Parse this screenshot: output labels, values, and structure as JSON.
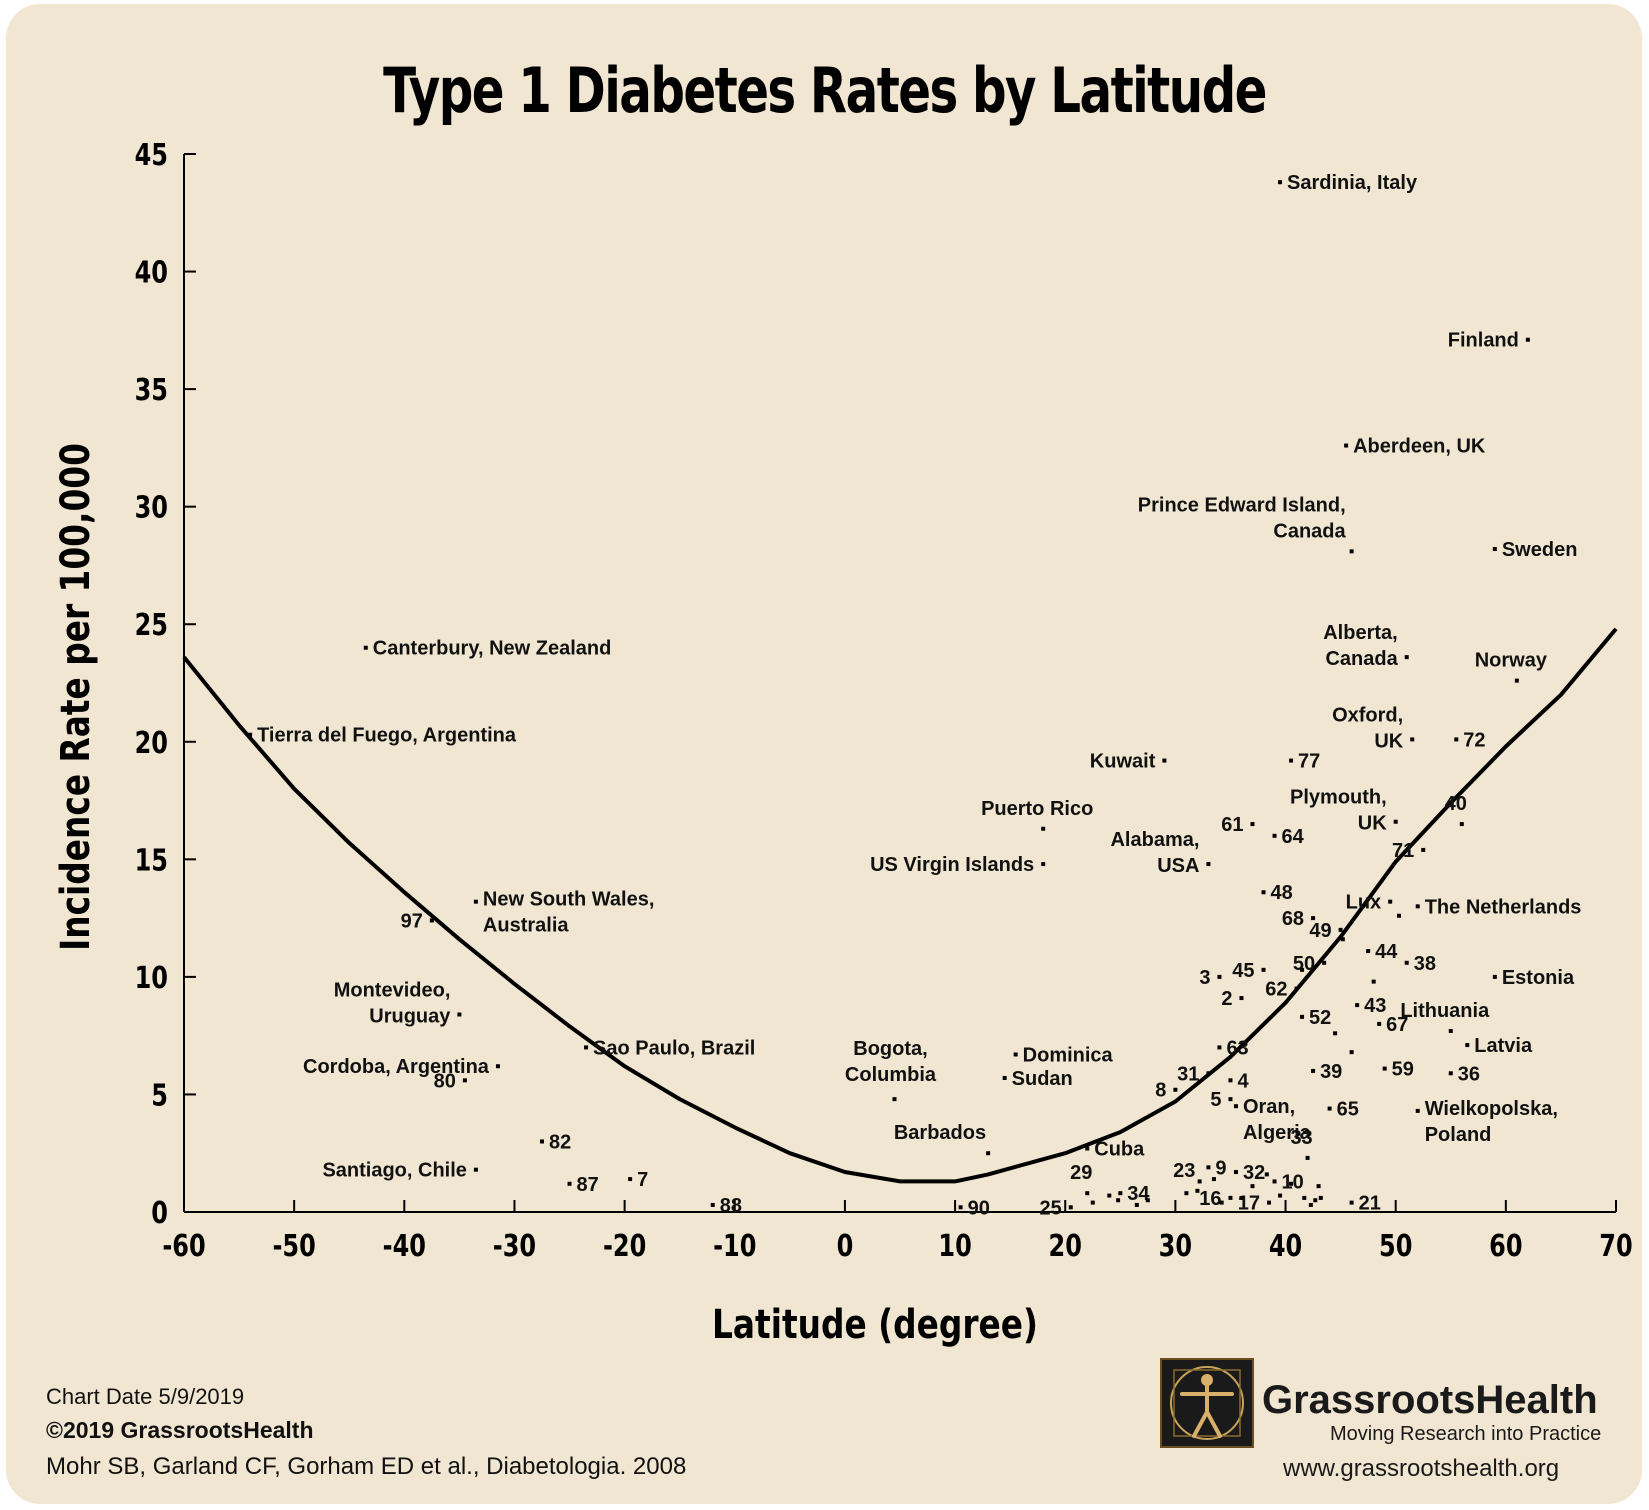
{
  "chart_data": {
    "type": "scatter",
    "title": "Type 1 Diabetes Rates by Latitude",
    "xlabel": "Latitude (degree)",
    "ylabel": "Incidence Rate per 100,000",
    "xlim": [
      -60,
      70
    ],
    "ylim": [
      0,
      45
    ],
    "xticks": [
      -60,
      -50,
      -40,
      -30,
      -20,
      -10,
      0,
      10,
      20,
      30,
      40,
      50,
      60,
      70
    ],
    "yticks": [
      0,
      5,
      10,
      15,
      20,
      25,
      30,
      35,
      40,
      45
    ],
    "grid": false,
    "points": [
      {
        "label": "Sardinia, Italy",
        "x": 39.5,
        "y": 43.8,
        "anchor": "right"
      },
      {
        "label": "Finland",
        "x": 62,
        "y": 37.1,
        "anchor": "left"
      },
      {
        "label": "Aberdeen, UK",
        "x": 45.5,
        "y": 32.6,
        "anchor": "right"
      },
      {
        "label": "Prince Edward Island,\nCanada",
        "x": 46,
        "y": 28.1,
        "anchor": "above"
      },
      {
        "label": "Sweden",
        "x": 59,
        "y": 28.2,
        "anchor": "right"
      },
      {
        "label": "Canterbury, New Zealand",
        "x": -43.5,
        "y": 24.0,
        "anchor": "right"
      },
      {
        "label": "Alberta,\nCanada",
        "x": 51,
        "y": 23.6,
        "anchor": "left2"
      },
      {
        "label": "Norway",
        "x": 61,
        "y": 22.6,
        "anchor": "above"
      },
      {
        "label": "Tierra del Fuego, Argentina",
        "x": -54,
        "y": 20.3,
        "anchor": "right"
      },
      {
        "label": "Oxford,\nUK",
        "x": 51.5,
        "y": 20.1,
        "anchor": "left2"
      },
      {
        "label": "72",
        "x": 55.5,
        "y": 20.1,
        "anchor": "right"
      },
      {
        "label": "Kuwait",
        "x": 29,
        "y": 19.2,
        "anchor": "left"
      },
      {
        "label": "77",
        "x": 40.5,
        "y": 19.2,
        "anchor": "right"
      },
      {
        "label": "Puerto Rico",
        "x": 18,
        "y": 16.3,
        "anchor": "above"
      },
      {
        "label": "61",
        "x": 37,
        "y": 16.5,
        "anchor": "left"
      },
      {
        "label": "64",
        "x": 39,
        "y": 16.0,
        "anchor": "right"
      },
      {
        "label": "Plymouth,\nUK",
        "x": 50,
        "y": 16.6,
        "anchor": "left2"
      },
      {
        "label": "40",
        "x": 56,
        "y": 16.5,
        "anchor": "above"
      },
      {
        "label": "71",
        "x": 52.5,
        "y": 15.4,
        "anchor": "left"
      },
      {
        "label": "US Virgin Islands",
        "x": 18,
        "y": 14.8,
        "anchor": "left"
      },
      {
        "label": "Alabama,\nUSA",
        "x": 33,
        "y": 14.8,
        "anchor": "left2"
      },
      {
        "label": "48",
        "x": 38,
        "y": 13.6,
        "anchor": "right"
      },
      {
        "label": "97",
        "x": -37.5,
        "y": 12.4,
        "anchor": "left"
      },
      {
        "label": "New South Wales,\nAustralia",
        "x": -33.5,
        "y": 13.2,
        "anchor": "right2"
      },
      {
        "label": "68",
        "x": 42.5,
        "y": 12.5,
        "anchor": "left"
      },
      {
        "label": "49",
        "x": 45,
        "y": 12.0,
        "anchor": "left"
      },
      {
        "label": "Lux",
        "x": 49.5,
        "y": 13.2,
        "anchor": "left"
      },
      {
        "label": "The Netherlands",
        "x": 52,
        "y": 13.0,
        "anchor": "right"
      },
      {
        "label": "",
        "x": 45.2,
        "y": 11.6,
        "anchor": "none"
      },
      {
        "label": "",
        "x": 50.3,
        "y": 12.6,
        "anchor": "none"
      },
      {
        "label": "44",
        "x": 47.5,
        "y": 11.1,
        "anchor": "right"
      },
      {
        "label": "45",
        "x": 38,
        "y": 10.3,
        "anchor": "left"
      },
      {
        "label": "50",
        "x": 43.5,
        "y": 10.6,
        "anchor": "left"
      },
      {
        "label": "38",
        "x": 51,
        "y": 10.6,
        "anchor": "right"
      },
      {
        "label": "Estonia",
        "x": 59,
        "y": 10.0,
        "anchor": "right"
      },
      {
        "label": "3",
        "x": 34,
        "y": 10.0,
        "anchor": "left"
      },
      {
        "label": "",
        "x": 41.5,
        "y": 10.3,
        "anchor": "none"
      },
      {
        "label": "62",
        "x": 41,
        "y": 9.5,
        "anchor": "left"
      },
      {
        "label": "",
        "x": 48,
        "y": 9.8,
        "anchor": "none"
      },
      {
        "label": "2",
        "x": 36,
        "y": 9.1,
        "anchor": "left"
      },
      {
        "label": "43",
        "x": 46.5,
        "y": 8.8,
        "anchor": "right"
      },
      {
        "label": "Lithuania",
        "x": 55,
        "y": 7.7,
        "anchor": "above"
      },
      {
        "label": "52",
        "x": 41.5,
        "y": 8.3,
        "anchor": "right"
      },
      {
        "label": "67",
        "x": 48.5,
        "y": 8.0,
        "anchor": "right"
      },
      {
        "label": "",
        "x": 44.5,
        "y": 7.6,
        "anchor": "none"
      },
      {
        "label": "Latvia",
        "x": 56.5,
        "y": 7.1,
        "anchor": "right"
      },
      {
        "label": "Montevideo,\nUruguay",
        "x": -35,
        "y": 8.4,
        "anchor": "left2"
      },
      {
        "label": "Sao Paulo, Brazil",
        "x": -23.5,
        "y": 7.0,
        "anchor": "right"
      },
      {
        "label": "63",
        "x": 34,
        "y": 7.0,
        "anchor": "right"
      },
      {
        "label": "",
        "x": 46,
        "y": 6.8,
        "anchor": "none"
      },
      {
        "label": "Dominica",
        "x": 15.5,
        "y": 6.7,
        "anchor": "right"
      },
      {
        "label": "Cordoba, Argentina",
        "x": -31.5,
        "y": 6.2,
        "anchor": "left"
      },
      {
        "label": "31",
        "x": 33,
        "y": 5.9,
        "anchor": "left"
      },
      {
        "label": "39",
        "x": 42.5,
        "y": 6.0,
        "anchor": "right"
      },
      {
        "label": "59",
        "x": 49,
        "y": 6.1,
        "anchor": "right"
      },
      {
        "label": "36",
        "x": 55,
        "y": 5.9,
        "anchor": "right"
      },
      {
        "label": "80",
        "x": -34.5,
        "y": 5.6,
        "anchor": "left"
      },
      {
        "label": "4",
        "x": 35,
        "y": 5.6,
        "anchor": "right"
      },
      {
        "label": "Sudan",
        "x": 14.5,
        "y": 5.7,
        "anchor": "right"
      },
      {
        "label": "Bogota,\nColumbia",
        "x": 4.5,
        "y": 4.8,
        "anchor": "above2"
      },
      {
        "label": "8",
        "x": 30,
        "y": 5.2,
        "anchor": "left"
      },
      {
        "label": "5",
        "x": 35,
        "y": 4.8,
        "anchor": "left"
      },
      {
        "label": "Oran,\nAlgeria",
        "x": 35.5,
        "y": 4.5,
        "anchor": "right"
      },
      {
        "label": "65",
        "x": 44,
        "y": 4.4,
        "anchor": "right"
      },
      {
        "label": "Wielkopolska,\nPoland",
        "x": 52,
        "y": 4.3,
        "anchor": "right2"
      },
      {
        "label": "82",
        "x": -27.5,
        "y": 3.0,
        "anchor": "right"
      },
      {
        "label": "Barbados",
        "x": 13,
        "y": 2.5,
        "anchor": "aboveleft"
      },
      {
        "label": "Cuba",
        "x": 22,
        "y": 2.7,
        "anchor": "right"
      },
      {
        "label": "33",
        "x": 42,
        "y": 2.3,
        "anchor": "above"
      },
      {
        "label": "Santiago, Chile",
        "x": -33.5,
        "y": 1.8,
        "anchor": "left"
      },
      {
        "label": "9",
        "x": 33,
        "y": 1.9,
        "anchor": "right"
      },
      {
        "label": "32",
        "x": 35.5,
        "y": 1.7,
        "anchor": "right"
      },
      {
        "label": "10",
        "x": 39,
        "y": 1.3,
        "anchor": "right"
      },
      {
        "label": "87",
        "x": -25,
        "y": 1.2,
        "anchor": "right"
      },
      {
        "label": "7",
        "x": -19.5,
        "y": 1.4,
        "anchor": "right"
      },
      {
        "label": "23",
        "x": 32,
        "y": 0.9,
        "anchor": "aboveleft"
      },
      {
        "label": "16",
        "x": 35,
        "y": 0.6,
        "anchor": "left"
      },
      {
        "label": "17",
        "x": 38.5,
        "y": 0.4,
        "anchor": "left"
      },
      {
        "label": "21",
        "x": 46,
        "y": 0.4,
        "anchor": "right"
      },
      {
        "label": "29",
        "x": 22,
        "y": 0.8,
        "anchor": "above"
      },
      {
        "label": "34",
        "x": 25,
        "y": 0.8,
        "anchor": "right"
      },
      {
        "label": "88",
        "x": -12,
        "y": 0.3,
        "anchor": "right"
      },
      {
        "label": "90",
        "x": 10.5,
        "y": 0.2,
        "anchor": "right"
      },
      {
        "label": "25",
        "x": 20.5,
        "y": 0.2,
        "anchor": "left"
      },
      {
        "label": "",
        "x": 22.5,
        "y": 0.4,
        "anchor": "none"
      },
      {
        "label": "",
        "x": 24,
        "y": 0.7,
        "anchor": "none"
      },
      {
        "label": "",
        "x": 24.8,
        "y": 0.5,
        "anchor": "none"
      },
      {
        "label": "",
        "x": 26.5,
        "y": 0.3,
        "anchor": "none"
      },
      {
        "label": "",
        "x": 27.5,
        "y": 0.5,
        "anchor": "none"
      },
      {
        "label": "",
        "x": 31,
        "y": 0.8,
        "anchor": "none"
      },
      {
        "label": "",
        "x": 32.2,
        "y": 1.3,
        "anchor": "none"
      },
      {
        "label": "",
        "x": 33.5,
        "y": 1.4,
        "anchor": "none"
      },
      {
        "label": "",
        "x": 34.2,
        "y": 0.4,
        "anchor": "none"
      },
      {
        "label": "",
        "x": 36,
        "y": 0.6,
        "anchor": "none"
      },
      {
        "label": "",
        "x": 37,
        "y": 1.1,
        "anchor": "none"
      },
      {
        "label": "",
        "x": 38.3,
        "y": 1.6,
        "anchor": "none"
      },
      {
        "label": "",
        "x": 39.5,
        "y": 0.7,
        "anchor": "none"
      },
      {
        "label": "",
        "x": 40.5,
        "y": 1.2,
        "anchor": "none"
      },
      {
        "label": "",
        "x": 41.7,
        "y": 0.6,
        "anchor": "none"
      },
      {
        "label": "",
        "x": 42.3,
        "y": 0.3,
        "anchor": "none"
      },
      {
        "label": "",
        "x": 43,
        "y": 1.1,
        "anchor": "none"
      },
      {
        "label": "",
        "x": 43.2,
        "y": 0.6,
        "anchor": "none"
      },
      {
        "label": "",
        "x": 42.7,
        "y": 0.5,
        "anchor": "none"
      }
    ],
    "trend": [
      [
        -60,
        23.6
      ],
      [
        -55,
        20.7
      ],
      [
        -50,
        18.0
      ],
      [
        -45,
        15.7
      ],
      [
        -40,
        13.6
      ],
      [
        -35,
        11.6
      ],
      [
        -30,
        9.7
      ],
      [
        -25,
        7.9
      ],
      [
        -20,
        6.2
      ],
      [
        -15,
        4.8
      ],
      [
        -10,
        3.6
      ],
      [
        -5,
        2.5
      ],
      [
        0,
        1.7
      ],
      [
        5,
        1.3
      ],
      [
        10,
        1.3
      ],
      [
        13,
        1.6
      ],
      [
        20,
        2.5
      ],
      [
        25,
        3.4
      ],
      [
        30,
        4.7
      ],
      [
        35,
        6.6
      ],
      [
        40,
        8.9
      ],
      [
        45,
        11.7
      ],
      [
        50,
        14.9
      ],
      [
        55,
        17.4
      ],
      [
        60,
        19.8
      ],
      [
        65,
        22.0
      ],
      [
        70,
        24.8
      ]
    ]
  },
  "footer": {
    "chart_date": "Chart Date 5/9/2019",
    "copyright": "©2019 GrassrootsHealth",
    "citation": "Mohr SB, Garland CF, Gorham ED et al., Diabetologia. 2008"
  },
  "brand": {
    "name": "GrassrootsHealth",
    "tagline": "Moving Research into Practice",
    "url": "www.grassrootshealth.org",
    "logo_icon": "vitruvian-man-icon",
    "accent": "#6b4e1f"
  }
}
